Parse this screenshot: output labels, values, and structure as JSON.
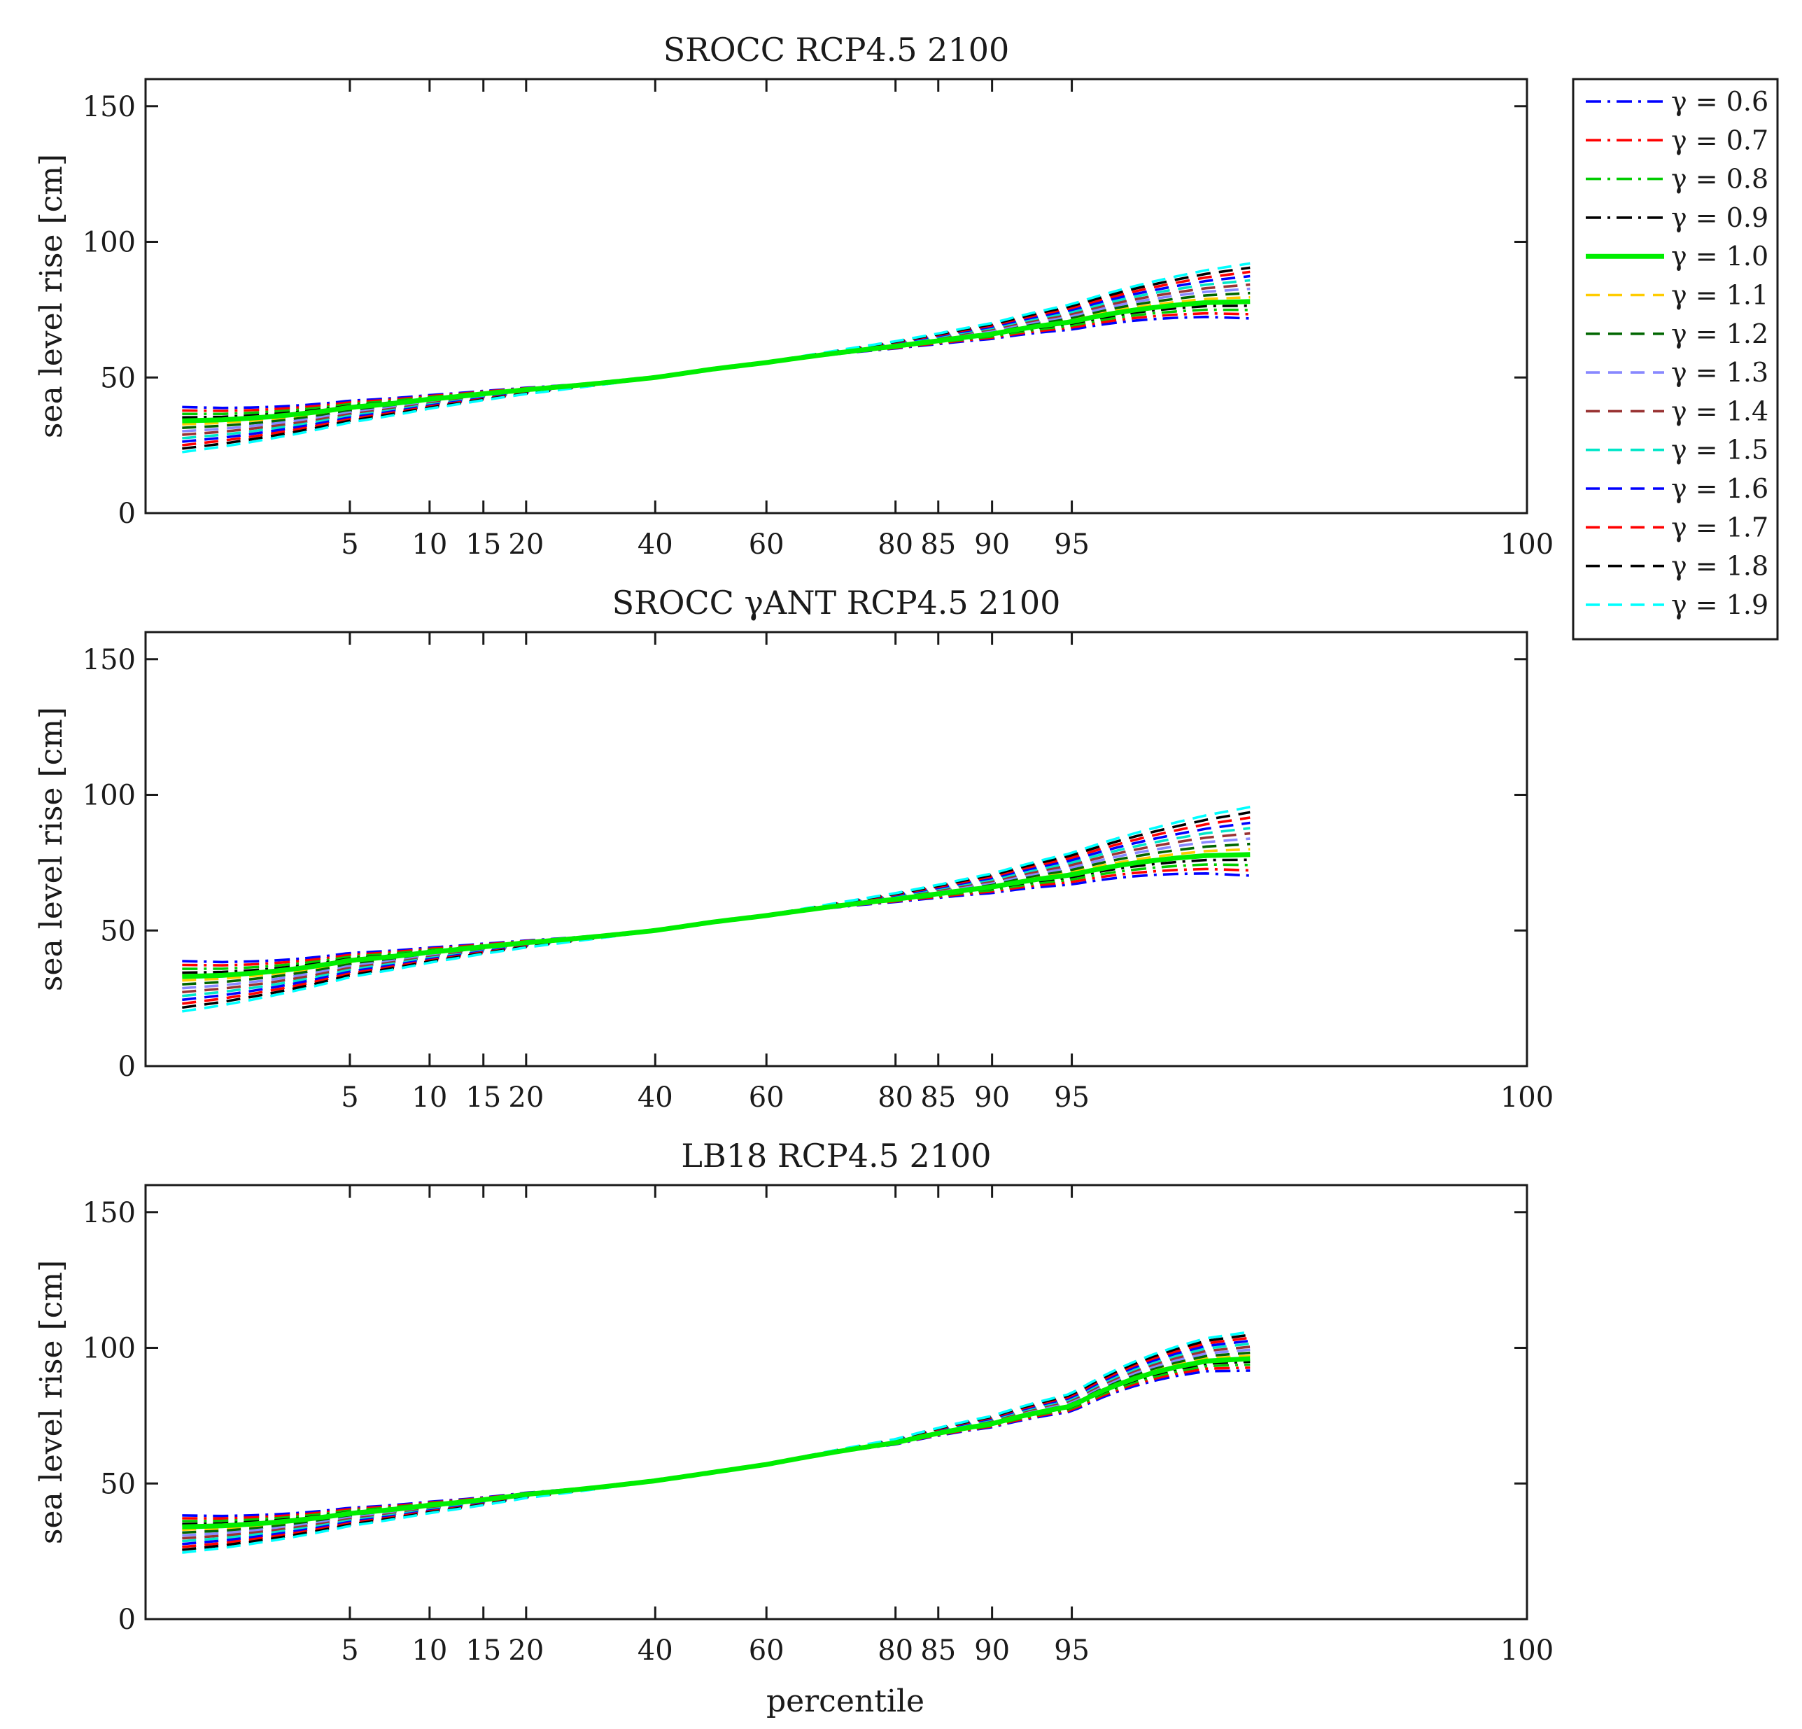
{
  "chart_data": {
    "type": "line",
    "xlabel": "percentile",
    "ylabel": "sea level rise [cm]",
    "ylim": [
      0,
      160
    ],
    "yticks": [
      0,
      50,
      100,
      150
    ],
    "x_scale": "normal-probability (inverse normal CDF)",
    "xticks": [
      5,
      10,
      15,
      20,
      40,
      60,
      80,
      85,
      90,
      95,
      100
    ],
    "x_domain": [
      0.5,
      99.99
    ],
    "legend": {
      "placement": "outside-right",
      "entries": [
        {
          "label": "γ = 0.6",
          "gamma": 0.6,
          "color": "#0000ff",
          "style": "dashdot"
        },
        {
          "label": "γ = 0.7",
          "gamma": 0.7,
          "color": "#ff0000",
          "style": "dashdot"
        },
        {
          "label": "γ = 0.8",
          "gamma": 0.8,
          "color": "#00cc00",
          "style": "dashdot"
        },
        {
          "label": "γ = 0.9",
          "gamma": 0.9,
          "color": "#000000",
          "style": "dashdot"
        },
        {
          "label": "γ = 1.0",
          "gamma": 1.0,
          "color": "#00ee00",
          "style": "solid"
        },
        {
          "label": "γ = 1.1",
          "gamma": 1.1,
          "color": "#ffcc00",
          "style": "dashed"
        },
        {
          "label": "γ = 1.2",
          "gamma": 1.2,
          "color": "#006600",
          "style": "dashed"
        },
        {
          "label": "γ = 1.3",
          "gamma": 1.3,
          "color": "#8888ff",
          "style": "dashed"
        },
        {
          "label": "γ = 1.4",
          "gamma": 1.4,
          "color": "#993333",
          "style": "dashed"
        },
        {
          "label": "γ = 1.5",
          "gamma": 1.5,
          "color": "#00e6c8",
          "style": "dashed"
        },
        {
          "label": "γ = 1.6",
          "gamma": 1.6,
          "color": "#0000ff",
          "style": "dashed"
        },
        {
          "label": "γ = 1.7",
          "gamma": 1.7,
          "color": "#ff0000",
          "style": "dashed"
        },
        {
          "label": "γ = 1.8",
          "gamma": 1.8,
          "color": "#000000",
          "style": "dashed"
        },
        {
          "label": "γ = 1.9",
          "gamma": 1.9,
          "color": "#00ffff",
          "style": "dashed"
        }
      ]
    },
    "panels": [
      {
        "title": "SROCC RCP4.5 2100",
        "x": [
          1,
          5,
          10,
          15,
          20,
          40,
          50,
          60,
          80,
          85,
          90,
          95,
          99
        ],
        "reference_gamma_1_0": [
          34,
          39,
          42,
          44,
          45.5,
          50,
          53,
          55.5,
          61.5,
          63.5,
          66,
          70.5,
          78
        ],
        "spread_at_low_tail": 16,
        "spread_at_high_tail": 19
      },
      {
        "title": "SROCC γANT RCP4.5 2100",
        "x": [
          1,
          5,
          10,
          15,
          20,
          40,
          50,
          60,
          80,
          85,
          90,
          95,
          99
        ],
        "reference_gamma_1_0": [
          33,
          39,
          42,
          44,
          45.5,
          50,
          53,
          55.5,
          61.5,
          63.5,
          66,
          70.5,
          78
        ],
        "spread_at_low_tail": 18,
        "spread_at_high_tail": 24
      },
      {
        "title": "LB18 RCP4.5 2100",
        "x": [
          1,
          5,
          10,
          15,
          20,
          40,
          50,
          60,
          80,
          85,
          90,
          95,
          99
        ],
        "reference_gamma_1_0": [
          34,
          39,
          42,
          44,
          46,
          51,
          54,
          57,
          65,
          68.5,
          72,
          78.5,
          96
        ],
        "spread_at_low_tail": 13,
        "spread_at_high_tail": 13
      }
    ]
  }
}
